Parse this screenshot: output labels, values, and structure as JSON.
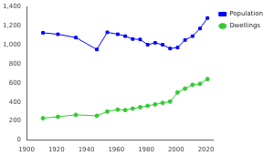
{
  "chart_data": {
    "type": "line",
    "x": [
      1911,
      1921,
      1933,
      1947,
      1954,
      1961,
      1966,
      1971,
      1976,
      1981,
      1986,
      1991,
      1996,
      2001,
      2006,
      2011,
      2016,
      2021
    ],
    "series": [
      {
        "name": "Population",
        "color": "#0000ff",
        "marker": "square",
        "line_style": "solid",
        "values": [
          1125,
          1110,
          1075,
          950,
          1130,
          1110,
          1090,
          1060,
          1055,
          1000,
          1020,
          1000,
          960,
          970,
          1050,
          1090,
          1170,
          1280
        ]
      },
      {
        "name": "Dwellings",
        "color": "#33cc33",
        "marker": "circle",
        "line_style": "solid",
        "values": [
          230,
          245,
          265,
          255,
          300,
          320,
          315,
          330,
          345,
          360,
          375,
          390,
          405,
          500,
          540,
          580,
          590,
          640
        ]
      }
    ],
    "xlim": [
      1900,
      2025
    ],
    "xticks": [
      1900,
      1920,
      1940,
      1960,
      1980,
      2000,
      2020
    ],
    "ylim": [
      0,
      1400
    ],
    "yticks": [
      0,
      200,
      400,
      600,
      800,
      {
        "value": 1000,
        "label": "1,000"
      },
      {
        "value": 1200,
        "label": "1,200"
      },
      {
        "value": 1400,
        "label": "1,400"
      }
    ],
    "grid": false,
    "legend": "right"
  }
}
